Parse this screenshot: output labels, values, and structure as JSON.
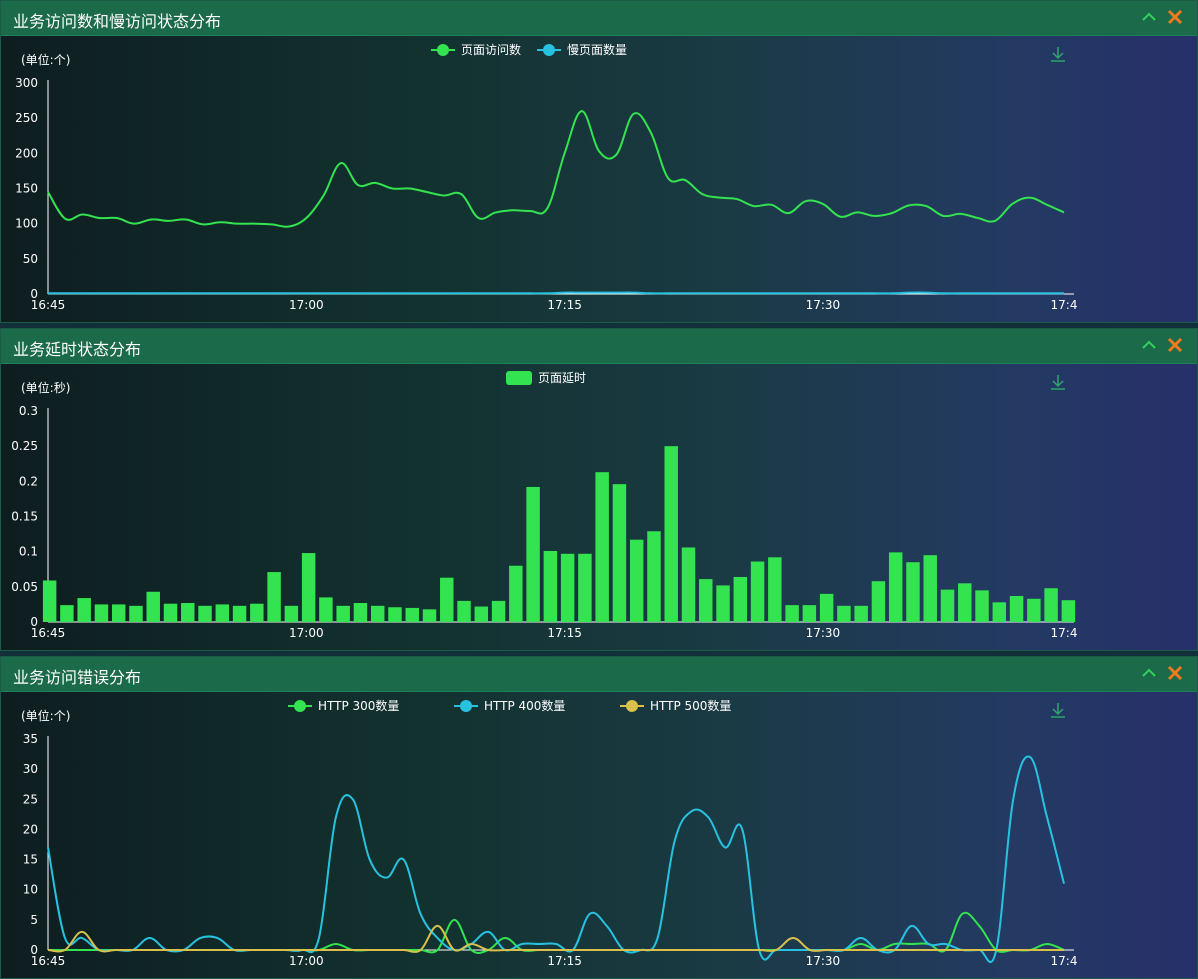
{
  "panels": [
    {
      "title": "业务访问数和慢访问状态分布",
      "collapse_icon": "chevron-up-icon",
      "close_icon": "close-icon",
      "download_icon": "download-icon"
    },
    {
      "title": "业务延时状态分布",
      "collapse_icon": "chevron-up-icon",
      "close_icon": "close-icon",
      "download_icon": "download-icon"
    },
    {
      "title": "业务访问错误分布",
      "collapse_icon": "chevron-up-icon",
      "close_icon": "close-icon",
      "download_icon": "download-icon"
    }
  ],
  "colors": {
    "green": "#33e34f",
    "cyan": "#28c2e0",
    "yellow": "#d9c04b",
    "header": "#1b6a4a",
    "collapse": "#33d05a",
    "close": "#f07a1f"
  },
  "chart_data": [
    {
      "type": "line",
      "unit_label": "(单位:个)",
      "x_ticks": [
        "16:45",
        "17:00",
        "17:15",
        "17:30",
        "17:4"
      ],
      "x_range": [
        0,
        59
      ],
      "ylim": [
        0,
        300
      ],
      "y_ticks": [
        "0",
        "50",
        "100",
        "150",
        "200",
        "250",
        "300"
      ],
      "series": [
        {
          "name": "页面访问数",
          "color": "#33e34f",
          "values": [
            145,
            107,
            113,
            108,
            108,
            100,
            106,
            104,
            106,
            99,
            102,
            100,
            100,
            99,
            96,
            108,
            140,
            186,
            155,
            158,
            150,
            150,
            145,
            140,
            142,
            108,
            116,
            119,
            118,
            122,
            200,
            260,
            203,
            198,
            256,
            230,
            165,
            162,
            142,
            137,
            135,
            125,
            127,
            115,
            132,
            128,
            110,
            116,
            111,
            115,
            126,
            125,
            111,
            114,
            108,
            104,
            128,
            137,
            127,
            116
          ],
          "smooth": true
        },
        {
          "name": "慢页面数量",
          "color": "#28c2e0",
          "values": [
            1,
            1,
            1,
            1,
            1,
            1,
            1,
            1,
            1,
            1,
            1,
            1,
            1,
            1,
            1,
            1,
            1,
            1,
            1,
            1,
            1,
            1,
            1,
            1,
            1,
            1,
            1,
            1,
            1,
            1,
            2,
            2,
            2,
            2,
            2,
            1,
            1,
            1,
            1,
            1,
            1,
            1,
            1,
            1,
            1,
            1,
            1,
            1,
            1,
            1,
            2,
            2,
            1,
            1,
            1,
            1,
            1,
            1,
            1,
            1
          ],
          "smooth": true
        }
      ]
    },
    {
      "type": "bar",
      "unit_label": "(单位:秒)",
      "x_ticks": [
        "16:45",
        "17:00",
        "17:15",
        "17:30",
        "17:4"
      ],
      "x_range": [
        0,
        59
      ],
      "ylim": [
        0,
        0.3
      ],
      "y_ticks": [
        "0",
        "0.05",
        "0.1",
        "0.15",
        "0.2",
        "0.25",
        "0.3"
      ],
      "series": [
        {
          "name": "页面延时",
          "color": "#33e34f",
          "values": [
            0.059,
            0.024,
            0.034,
            0.025,
            0.025,
            0.023,
            0.043,
            0.026,
            0.027,
            0.023,
            0.025,
            0.023,
            0.026,
            0.071,
            0.023,
            0.098,
            0.035,
            0.023,
            0.027,
            0.023,
            0.021,
            0.02,
            0.018,
            0.063,
            0.03,
            0.022,
            0.03,
            0.08,
            0.192,
            0.101,
            0.097,
            0.097,
            0.213,
            0.196,
            0.117,
            0.129,
            0.25,
            0.106,
            0.061,
            0.052,
            0.064,
            0.086,
            0.092,
            0.024,
            0.024,
            0.04,
            0.023,
            0.023,
            0.058,
            0.099,
            0.085,
            0.095,
            0.046,
            0.055,
            0.045,
            0.028,
            0.037,
            0.033,
            0.048,
            0.031
          ]
        }
      ]
    },
    {
      "type": "line",
      "unit_label": "(单位:个)",
      "x_ticks": [
        "16:45",
        "17:00",
        "17:15",
        "17:30",
        "17:4"
      ],
      "x_range": [
        0,
        59
      ],
      "ylim": [
        0,
        35
      ],
      "y_ticks": [
        "0",
        "5",
        "10",
        "15",
        "20",
        "25",
        "30",
        "35"
      ],
      "series": [
        {
          "name": "HTTP 300数量",
          "color": "#33e34f",
          "values": [
            0,
            0,
            0,
            0,
            0,
            0,
            0,
            0,
            0,
            0,
            0,
            0,
            0,
            0,
            0,
            0,
            0,
            1,
            0,
            0,
            0,
            0,
            0,
            0,
            5,
            0,
            0,
            2,
            0,
            0,
            0,
            0,
            0,
            0,
            0,
            0,
            0,
            0,
            0,
            0,
            0,
            0,
            0,
            0,
            0,
            0,
            0,
            0,
            1,
            0,
            1,
            1,
            1,
            0,
            6,
            4,
            0,
            0,
            0,
            1,
            0
          ],
          "smooth": true
        },
        {
          "name": "HTTP 400数量",
          "color": "#28c2e0",
          "values": [
            17,
            2,
            2,
            0,
            0,
            0,
            2,
            0,
            0,
            2,
            2,
            0,
            0,
            0,
            0,
            0,
            2,
            22,
            25,
            15,
            12,
            15,
            6,
            2,
            0,
            1,
            3,
            0,
            1,
            1,
            1,
            0,
            6,
            4,
            0,
            0,
            2,
            18,
            23,
            22,
            17,
            20,
            0,
            0,
            0,
            0,
            0,
            0,
            2,
            0,
            0,
            4,
            1,
            1,
            0,
            0,
            0,
            25,
            32,
            22,
            11
          ],
          "smooth": true
        },
        {
          "name": "HTTP 500数量",
          "color": "#d9c04b",
          "values": [
            0,
            0,
            3,
            0,
            0,
            0,
            0,
            0,
            0,
            0,
            0,
            0,
            0,
            0,
            0,
            0,
            0,
            0,
            0,
            0,
            0,
            0,
            0,
            4,
            0,
            1,
            0,
            0,
            0,
            0,
            0,
            0,
            0,
            0,
            0,
            0,
            0,
            0,
            0,
            0,
            0,
            0,
            0,
            0,
            2,
            0,
            0,
            0,
            0,
            0,
            0,
            0,
            0,
            0,
            0,
            0,
            0,
            0,
            0,
            0,
            0
          ],
          "smooth": true
        }
      ]
    }
  ]
}
